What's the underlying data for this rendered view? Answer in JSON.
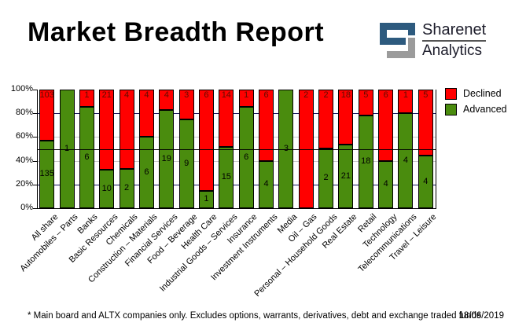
{
  "header": {
    "title": "Market Breadth Report",
    "logo": {
      "line1": "Sharenet",
      "line2": "Analytics"
    }
  },
  "chart_data": {
    "type": "bar",
    "stacked": "percent",
    "categories": [
      "All share",
      "Automobiles – Parts",
      "Banks",
      "Basic Resources",
      "Chemicals",
      "Construction – Materials",
      "Financial Services",
      "Food – Beverage",
      "Health Care",
      "Industrial Goods – Services",
      "Insurance",
      "Investment Instruments",
      "Media",
      "Oil – Gas",
      "Personal – Household Goods",
      "Real Estate",
      "Retail",
      "Technology",
      "Telecommunications",
      "Travel – Leisure"
    ],
    "series": [
      {
        "name": "Declined",
        "color": "#ff0000",
        "values": [
          103,
          0,
          1,
          21,
          4,
          4,
          4,
          3,
          6,
          14,
          1,
          6,
          0,
          2,
          2,
          18,
          5,
          6,
          1,
          5
        ]
      },
      {
        "name": "Advanced",
        "color": "#4a8c0e",
        "values": [
          135,
          1,
          6,
          10,
          2,
          6,
          19,
          9,
          1,
          15,
          6,
          4,
          3,
          0,
          2,
          21,
          18,
          4,
          4,
          4
        ]
      }
    ],
    "y_ticks": [
      "0%",
      "20%",
      "40%",
      "60%",
      "80%",
      "100%"
    ],
    "ylim": [
      0,
      100
    ],
    "half_line_value": 50,
    "legend_position": "top-right",
    "colors": {
      "grid_navy": "#15155e",
      "grid_gray": "#c9c9c9",
      "half_line": "#000000",
      "declined_label_text": "#5f0d00",
      "advanced_label_text": "#000000",
      "logo_blue": "#2d5a7e",
      "logo_gray": "#9b9b9b"
    }
  },
  "legend": {
    "items": [
      {
        "label": "Declined",
        "color": "#ff0000"
      },
      {
        "label": "Advanced",
        "color": "#4a8c0e"
      }
    ]
  },
  "footer": {
    "note": "* Main board and ALTX companies only. Excludes options, warrants, derivatives, debt and exchange traded funds",
    "date": "18/06/2019"
  }
}
